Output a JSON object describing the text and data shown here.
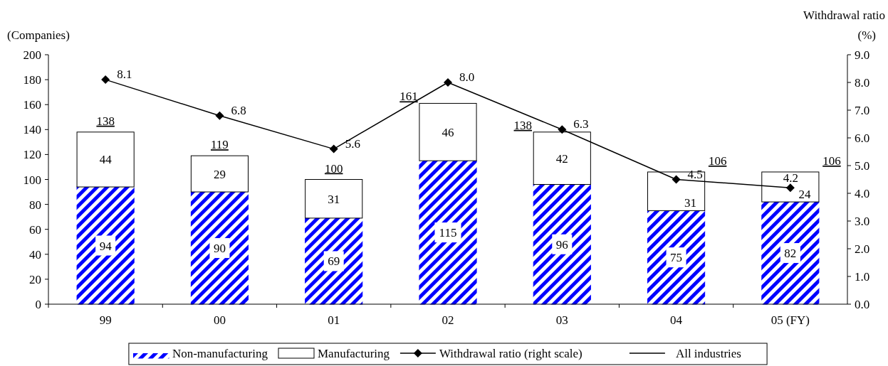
{
  "chart_data": {
    "type": "bar",
    "stacked": true,
    "categories": [
      "99",
      "00",
      "01",
      "02",
      "03",
      "04",
      "05 (FY)"
    ],
    "ylabel": "(Companies)",
    "y2label": "Withdrawal ratio\n(%)",
    "ylim": [
      0,
      200
    ],
    "yticks": [
      0,
      20,
      40,
      60,
      80,
      100,
      120,
      140,
      160,
      180,
      200
    ],
    "y2lim": [
      0,
      9
    ],
    "y2ticks": [
      {
        "value": 0,
        "label": "0.0"
      },
      {
        "value": 1,
        "label": "1.0"
      },
      {
        "value": 2,
        "label": "2.0"
      },
      {
        "value": 3,
        "label": "3.0"
      },
      {
        "value": 4,
        "label": "4.0"
      },
      {
        "value": 5,
        "label": "5.0"
      },
      {
        "value": 6,
        "label": "6.0"
      },
      {
        "value": 7,
        "label": "7.0"
      },
      {
        "value": 8,
        "label": "8.0"
      },
      {
        "value": 9,
        "label": "9.0"
      }
    ],
    "series": [
      {
        "name": "Non-manufacturing",
        "color": "#0000ff",
        "values": [
          94,
          90,
          69,
          115,
          96,
          75,
          82
        ]
      },
      {
        "name": "Manufacturing",
        "color": "#ffffff",
        "values": [
          44,
          29,
          31,
          46,
          42,
          31,
          24
        ]
      },
      {
        "name": "Withdrawal ratio (right scale)",
        "type": "line",
        "axis": "y2",
        "color": "#000000",
        "marker": "diamond",
        "line_style": "solid",
        "values": [
          8.1,
          6.8,
          5.6,
          8.0,
          6.3,
          4.5,
          4.2
        ],
        "value_labels": [
          "8.1",
          "6.8",
          "5.6",
          "8.0",
          "6.3",
          "4.5",
          "4.2"
        ]
      }
    ],
    "totals": [
      "138",
      "119",
      "100",
      "161",
      "138",
      "106",
      "106"
    ],
    "annotations": [
      "All industries"
    ],
    "data_labels": true,
    "legend": "bottom"
  }
}
